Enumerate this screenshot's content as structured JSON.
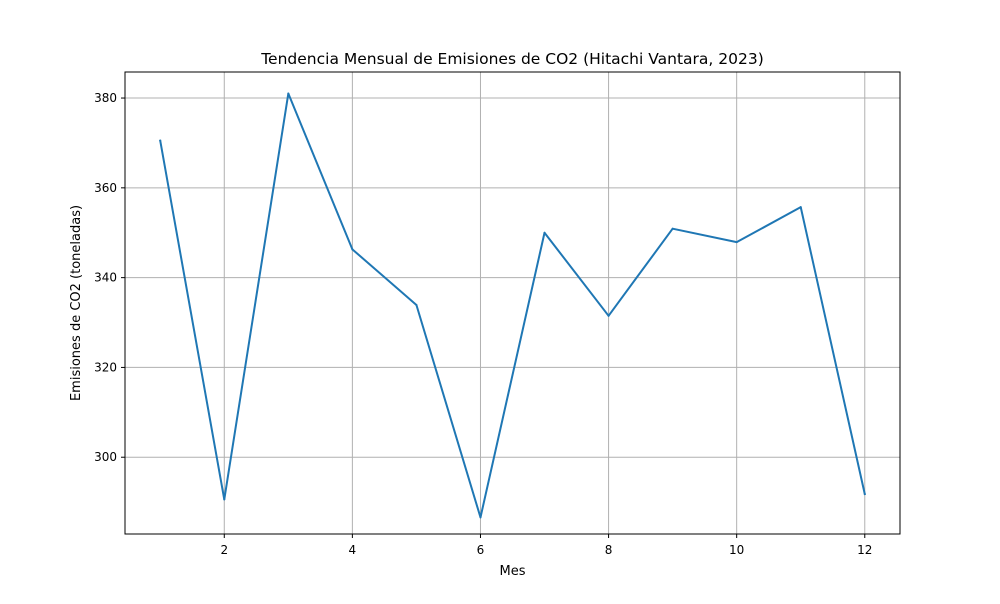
{
  "chart_data": {
    "type": "line",
    "title": "Tendencia Mensual de Emisiones de CO2 (Hitachi Vantara, 2023)",
    "xlabel": "Mes",
    "ylabel": "Emisiones de CO2 (toneladas)",
    "x": [
      1,
      2,
      3,
      4,
      5,
      6,
      7,
      8,
      9,
      10,
      11,
      12
    ],
    "series": [
      {
        "name": "",
        "color": "#1f77b4",
        "values": [
          370.5,
          290.6,
          381.0,
          346.3,
          333.9,
          286.6,
          350.0,
          331.5,
          350.9,
          347.9,
          355.7,
          291.8
        ]
      }
    ],
    "xlim": [
      0.45,
      12.55
    ],
    "ylim": [
      282.9,
      385.8
    ],
    "xticks": [
      2,
      4,
      6,
      8,
      10,
      12
    ],
    "yticks": [
      300,
      320,
      340,
      360,
      380
    ],
    "grid": true,
    "grid_color": "#b0b0b0",
    "axis_color": "#000000"
  }
}
